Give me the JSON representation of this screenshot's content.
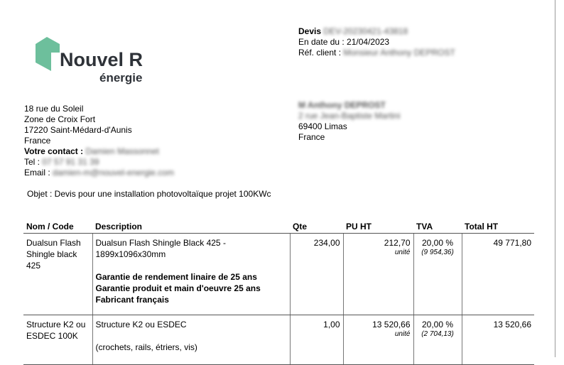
{
  "logo": {
    "name": "Nouvel R",
    "tagline": "énergie",
    "color": "#6dbf9c"
  },
  "quote": {
    "title_label": "Devis",
    "number": "DEV-20230421-43818",
    "date_line": "En date du : 21/04/2023",
    "ref_label": "Réf. client :",
    "ref_value": "Monsieur Anthony DEPROST"
  },
  "sender": {
    "lines": [
      "18 rue du Soleil",
      "Zone de Croix Fort",
      "17220 Saint-Médard-d'Aunis",
      "France"
    ],
    "contact_label": "Votre contact :",
    "contact_value": "Damien Massonnet",
    "tel_label": "Tel :",
    "tel_value": "07 57 91 31 39",
    "email_label": "Email :",
    "email_value": "damien-m@nouvel-energie.com"
  },
  "client": {
    "name": "M Anthony DEPROST",
    "street": "2 rue Jean-Baptiste Martini",
    "city": "69400 Limas",
    "country": "France"
  },
  "object": "Objet : Devis pour une installation photovoltaïque projet 100KWc",
  "table": {
    "headers": [
      "Nom / Code",
      "Description",
      "Qte",
      "PU HT",
      "TVA",
      "Total HT"
    ],
    "rows": [
      {
        "code": "Dualsun Flash Shingle black 425",
        "desc": "Dualsun Flash Shingle Black 425 - 1899x1096x30mm",
        "desc_bold": [
          "Garantie de rendement linaire de 25 ans",
          "Garantie produit et main d'oeuvre 25 ans",
          "Fabricant français"
        ],
        "qty": "234,00",
        "pu": "212,70",
        "unit": "unité",
        "tva": "20,00 %",
        "tva_amount": "(9 954,36)",
        "total": "49 771,80"
      },
      {
        "code": "Structure K2 ou ESDEC 100K",
        "desc": "Structure K2 ou ESDEC",
        "desc_extra": "(crochets, rails, étriers, vis)",
        "qty": "1,00",
        "pu": "13 520,66",
        "unit": "unité",
        "tva": "20,00 %",
        "tva_amount": "(2 704,13)",
        "total": "13 520,66"
      }
    ]
  }
}
